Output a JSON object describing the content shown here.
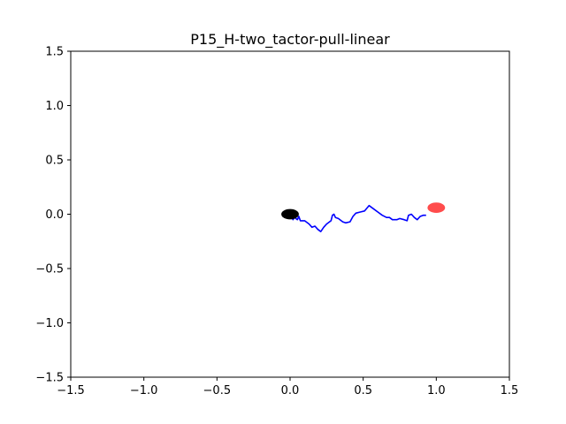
{
  "chart_data": {
    "type": "scatter",
    "title": "P15_H-two_tactor-pull-linear",
    "xlabel": "",
    "ylabel": "",
    "xlim": [
      -1.5,
      1.5
    ],
    "ylim": [
      -1.5,
      1.5
    ],
    "x_ticks": [
      -1.5,
      -1.0,
      -0.5,
      0.0,
      0.5,
      1.0,
      1.5
    ],
    "y_ticks": [
      -1.5,
      -1.0,
      -0.5,
      0.0,
      0.5,
      1.0,
      1.5
    ],
    "x_tick_labels": [
      "−1.5",
      "−1.0",
      "−0.5",
      "0.0",
      "0.5",
      "1.0",
      "1.5"
    ],
    "y_tick_labels": [
      "−1.5",
      "−1.0",
      "−0.5",
      "0.0",
      "0.5",
      "1.0",
      "1.5"
    ],
    "grid": false,
    "series": [
      {
        "kind": "line",
        "color": "#0000ff",
        "points": [
          [
            0.0,
            0.0
          ],
          [
            0.01,
            -0.02
          ],
          [
            0.02,
            -0.05
          ],
          [
            0.03,
            -0.03
          ],
          [
            0.05,
            -0.05
          ],
          [
            0.06,
            -0.02
          ],
          [
            0.07,
            -0.06
          ],
          [
            0.1,
            -0.06
          ],
          [
            0.13,
            -0.09
          ],
          [
            0.15,
            -0.12
          ],
          [
            0.17,
            -0.11
          ],
          [
            0.19,
            -0.14
          ],
          [
            0.21,
            -0.16
          ],
          [
            0.23,
            -0.12
          ],
          [
            0.25,
            -0.09
          ],
          [
            0.28,
            -0.06
          ],
          [
            0.29,
            -0.01
          ],
          [
            0.3,
            0.0
          ],
          [
            0.31,
            -0.03
          ],
          [
            0.33,
            -0.04
          ],
          [
            0.36,
            -0.07
          ],
          [
            0.38,
            -0.08
          ],
          [
            0.41,
            -0.07
          ],
          [
            0.43,
            -0.02
          ],
          [
            0.45,
            0.01
          ],
          [
            0.48,
            0.02
          ],
          [
            0.51,
            0.03
          ],
          [
            0.54,
            0.08
          ],
          [
            0.57,
            0.05
          ],
          [
            0.6,
            0.02
          ],
          [
            0.63,
            -0.01
          ],
          [
            0.66,
            -0.03
          ],
          [
            0.68,
            -0.03
          ],
          [
            0.7,
            -0.05
          ],
          [
            0.73,
            -0.05
          ],
          [
            0.75,
            -0.04
          ],
          [
            0.78,
            -0.05
          ],
          [
            0.8,
            -0.06
          ],
          [
            0.81,
            -0.01
          ],
          [
            0.83,
            0.0
          ],
          [
            0.85,
            -0.03
          ],
          [
            0.87,
            -0.05
          ],
          [
            0.89,
            -0.02
          ],
          [
            0.91,
            -0.01
          ],
          [
            0.93,
            -0.01
          ]
        ]
      },
      {
        "kind": "marker",
        "color": "#000000",
        "x": 0.0,
        "y": 0.0,
        "size": 0.06
      },
      {
        "kind": "marker",
        "color": "#ff0000",
        "alpha": 0.7,
        "x": 1.0,
        "y": 0.06,
        "size": 0.06
      }
    ]
  }
}
